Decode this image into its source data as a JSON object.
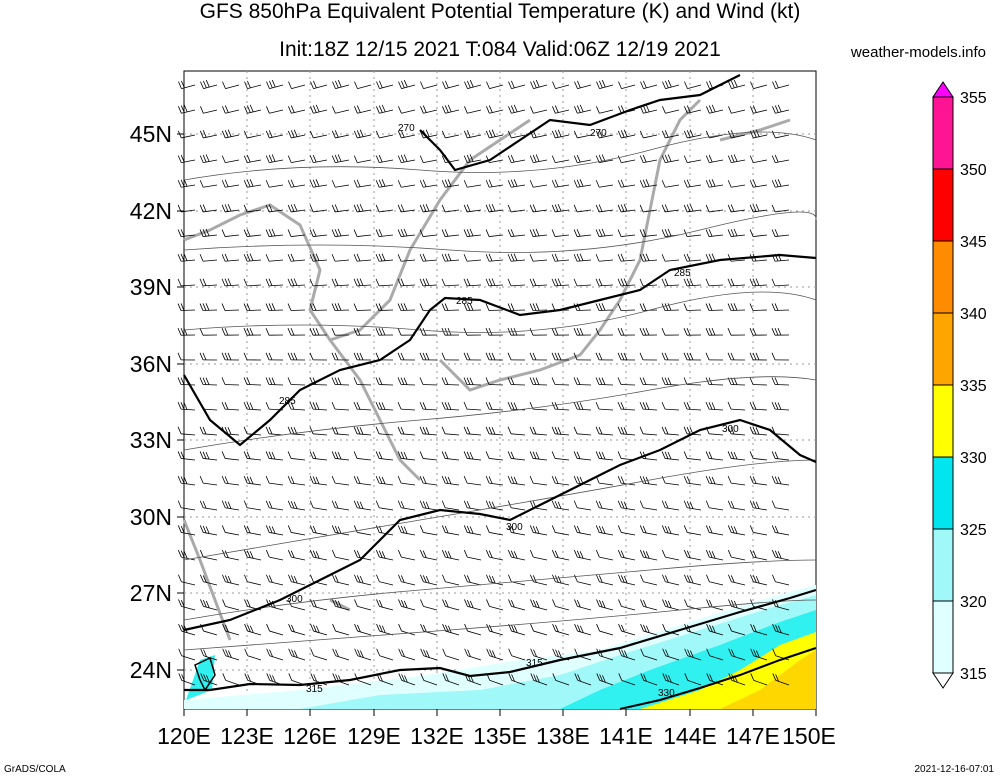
{
  "header": {
    "title_line1": "GFS 850hPa Equivalent Potential Temperature (K) and Wind (kt)",
    "title_line2": "Init:18Z 12/15 2021 T:084 Valid:06Z 12/19 2021",
    "site": "weather-models.info"
  },
  "footer": {
    "left": "GrADS/COLA",
    "right": "2021-12-16-07:01"
  },
  "map": {
    "lon_ticks": [
      "120E",
      "123E",
      "126E",
      "129E",
      "132E",
      "135E",
      "138E",
      "141E",
      "144E",
      "147E",
      "150E"
    ],
    "lat_ticks": [
      "45N",
      "42N",
      "39N",
      "36N",
      "33N",
      "30N",
      "27N",
      "24N"
    ],
    "contour_labels": [
      "270",
      "270",
      "285",
      "285",
      "285",
      "300",
      "300",
      "300",
      "315",
      "315",
      "330"
    ]
  },
  "colorbar": {
    "levels": [
      "355",
      "350",
      "345",
      "340",
      "335",
      "330",
      "325",
      "320",
      "315"
    ],
    "colors": [
      "#ff00ff",
      "#ff1493",
      "#ff0000",
      "#ff8c00",
      "#ffa500",
      "#ffd700",
      "#ffff00",
      "#00e5ee",
      "#30f0f0",
      "#a0f8f8",
      "#e0ffff",
      "#ffffff"
    ]
  }
}
